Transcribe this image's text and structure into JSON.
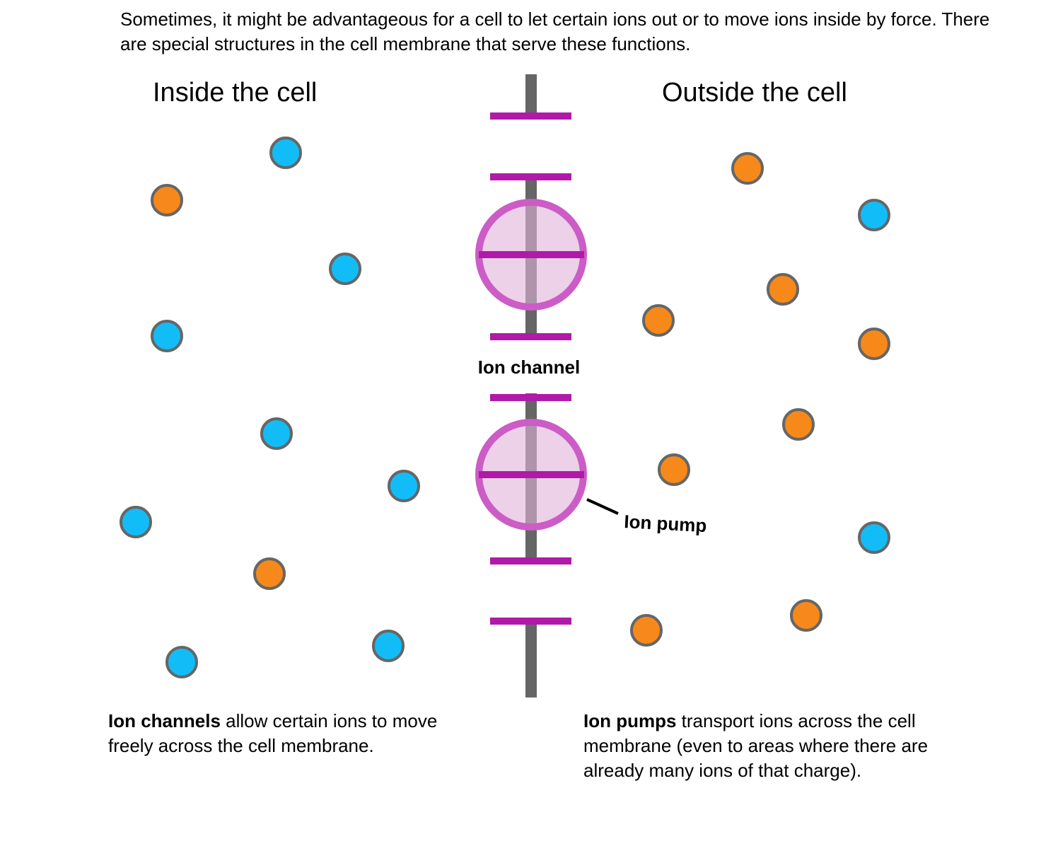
{
  "intro_text": "Sometimes, it might be advantageous for a cell to let certain ions out or to move ions inside by force. There are special structures in the cell membrane that serve these functions.",
  "inside_label": "Inside the cell",
  "outside_label": "Outside the cell",
  "ion_channel_label": "Ion channel",
  "ion_pump_label": "Ion pump",
  "caption_channels": {
    "bold": "Ion channels",
    "rest": " allow certain ions to move freely across the cell membrane."
  },
  "caption_pumps": {
    "bold": "Ion pumps",
    "rest": " transport ions across the cell membrane (even to areas where there are already many ions of that charge)."
  },
  "colors": {
    "blue_ion": "#12bdf7",
    "orange_ion": "#f7891a",
    "ion_outline": "#666666",
    "membrane": "#666666",
    "protein_bar": "#b01aa8",
    "protein_fill": "#dfb3da",
    "protein_ring": "#cc5cc6"
  }
}
